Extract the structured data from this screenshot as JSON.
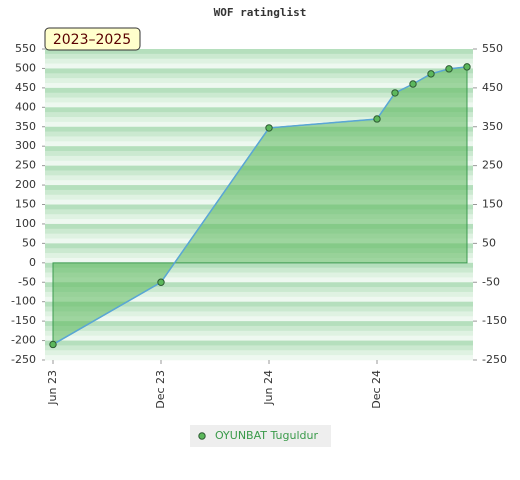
{
  "chart_data": {
    "type": "line",
    "title": "WOF ratinglist",
    "period_label": "2023–2025",
    "x": [
      "2023-06",
      "2023-12",
      "2024-06",
      "2024-12",
      "2025-01",
      "2025-02",
      "2025-03",
      "2025-04",
      "2025-05"
    ],
    "xticks": [
      {
        "value": "2023-06",
        "label": "Jun 23"
      },
      {
        "value": "2023-12",
        "label": "Dec 23"
      },
      {
        "value": "2024-06",
        "label": "Jun 24"
      },
      {
        "value": "2024-12",
        "label": "Dec 24"
      }
    ],
    "series": [
      {
        "name": "OYUNBAT Tuguldur",
        "color": "#5cb85c",
        "line_color": "#5aa6d6",
        "values": [
          -210,
          -50,
          347,
          370,
          437,
          460,
          486,
          499,
          504
        ]
      }
    ],
    "ylim": [
      -250,
      550
    ],
    "yticks": [
      -250,
      -200,
      -150,
      -100,
      -50,
      0,
      50,
      100,
      150,
      200,
      250,
      300,
      350,
      400,
      450,
      500,
      550
    ],
    "y2lim": [
      -250,
      550
    ],
    "y2ticks": [
      -250,
      -150,
      -50,
      50,
      150,
      250,
      350,
      450,
      550
    ]
  }
}
